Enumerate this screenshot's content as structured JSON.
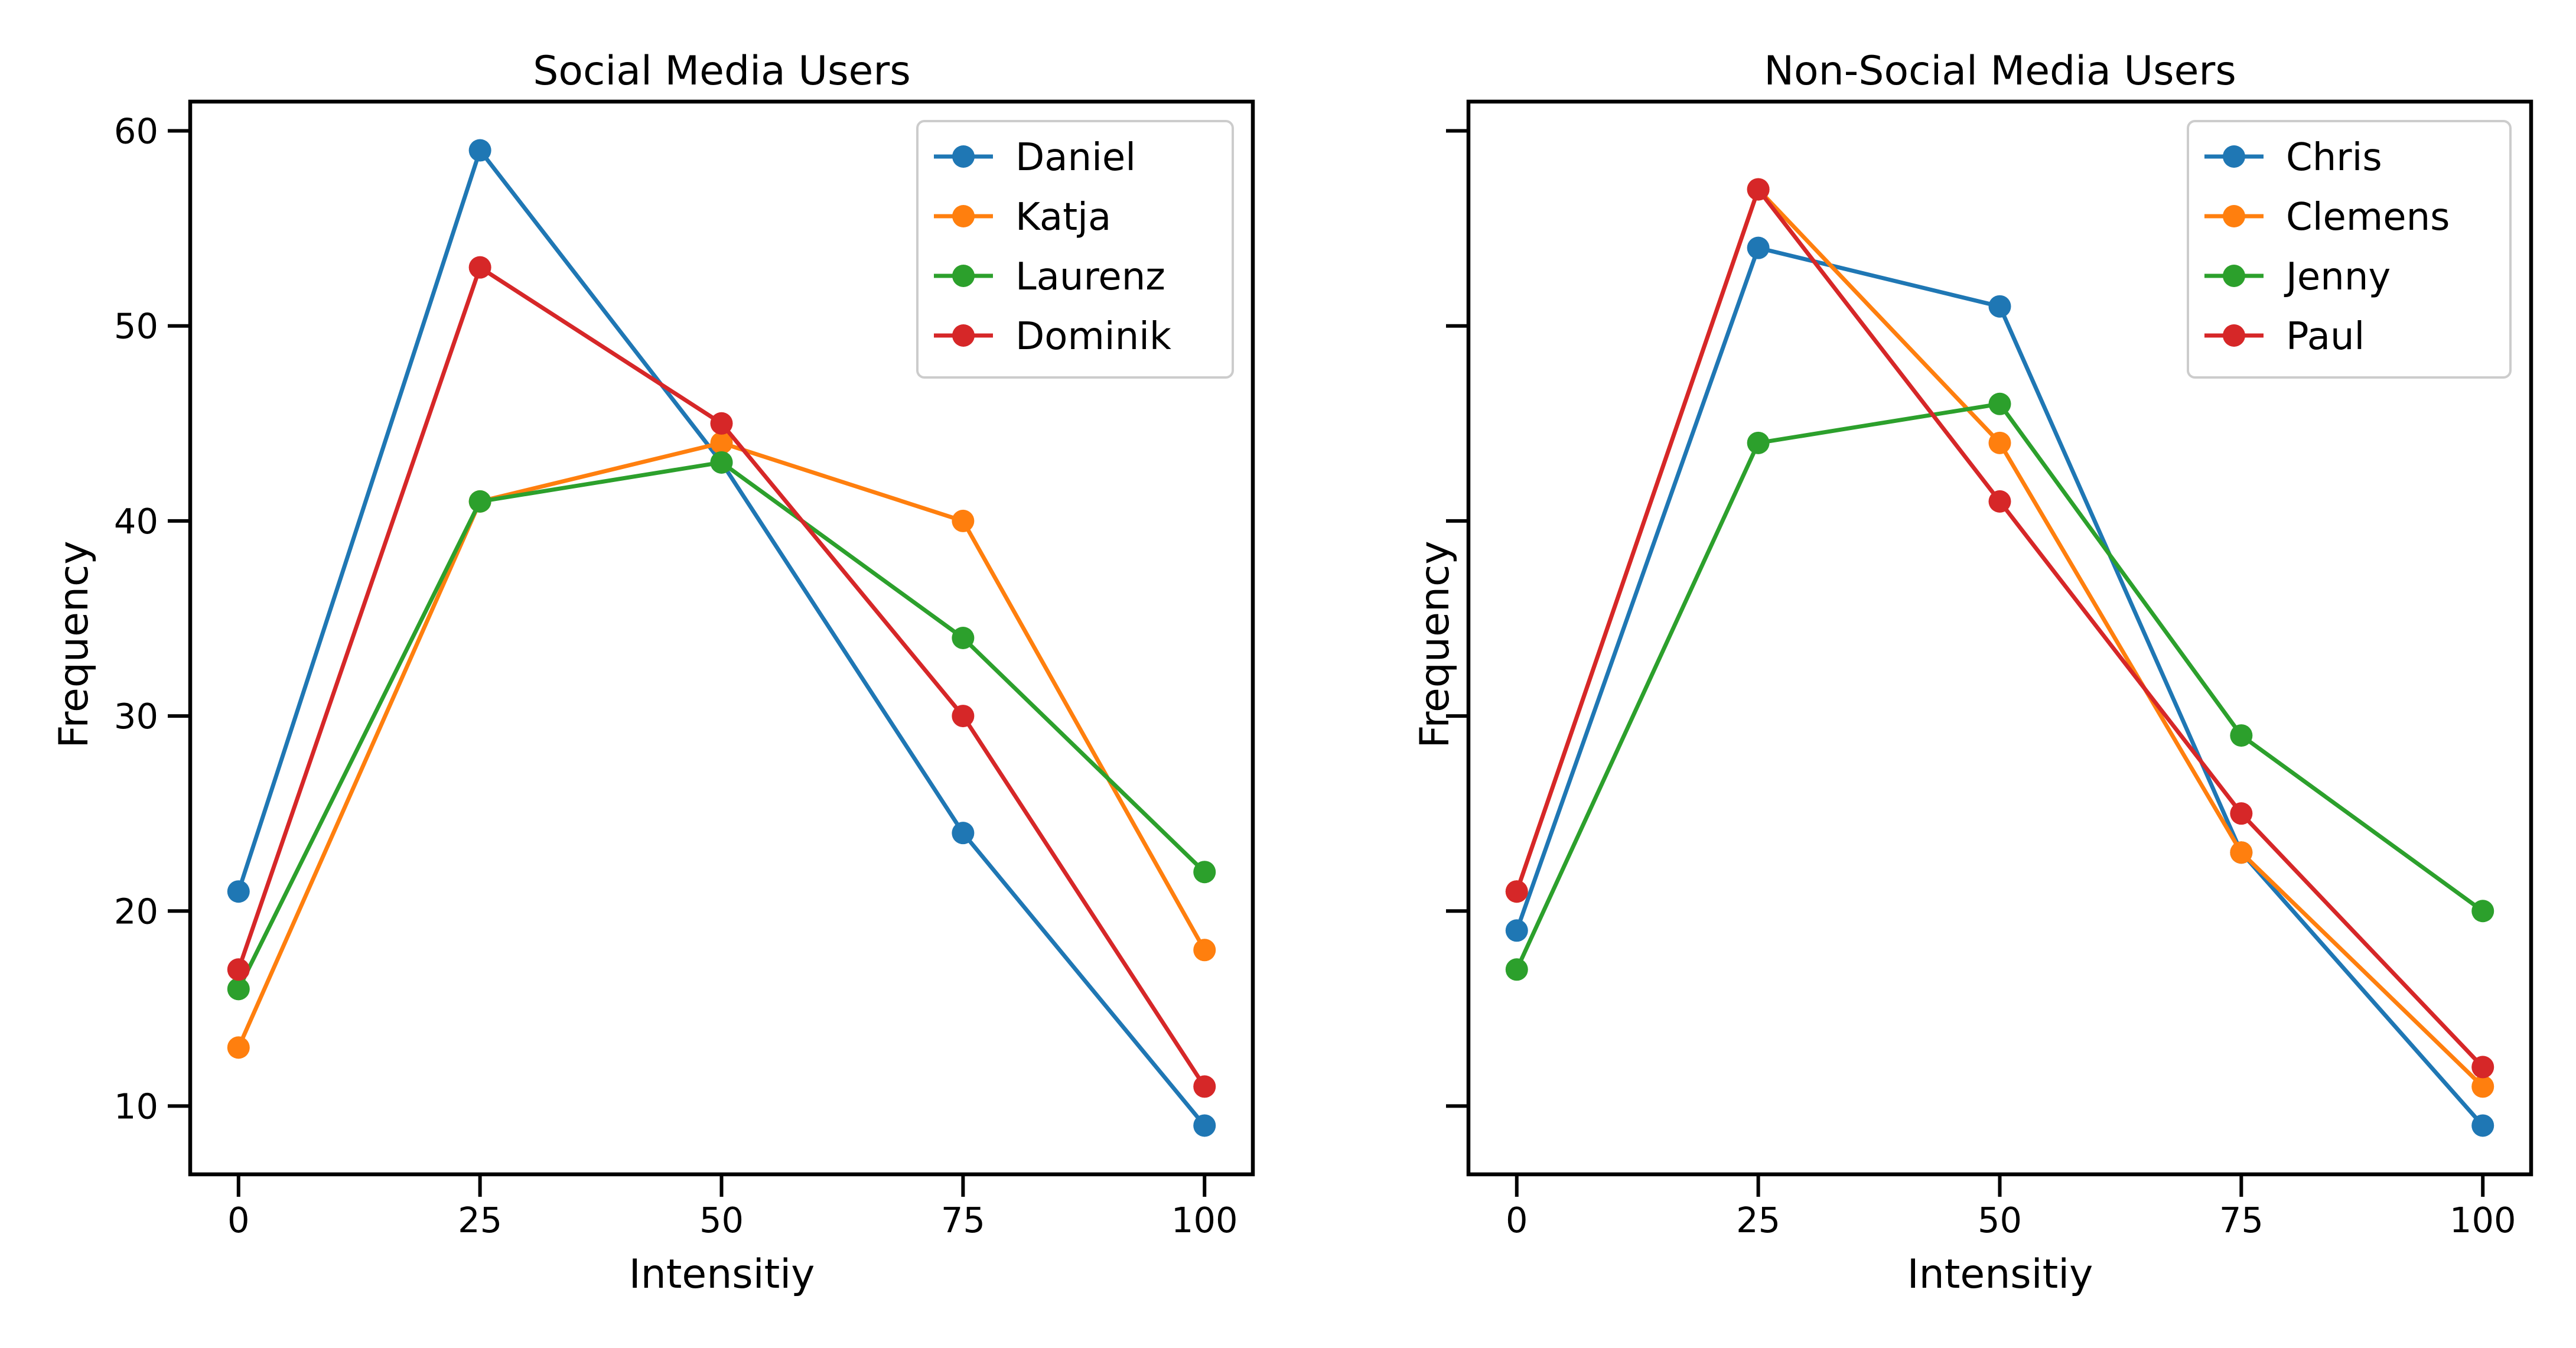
{
  "chart_data": [
    {
      "type": "line",
      "title": "Social Media Users",
      "xlabel": "Intensitiy",
      "ylabel": "Frequency",
      "x": [
        0,
        25,
        50,
        75,
        100
      ],
      "xticks": [
        0,
        25,
        50,
        75,
        100
      ],
      "yticks": [
        10,
        20,
        30,
        40,
        50,
        60
      ],
      "xlim": [
        -5,
        105
      ],
      "ylim": [
        6.5,
        61.5
      ],
      "grid": false,
      "legend_position": "top-right",
      "series": [
        {
          "name": "Daniel",
          "color": "#1f77b4",
          "values": [
            21,
            59,
            43,
            24,
            9
          ]
        },
        {
          "name": "Katja",
          "color": "#ff7f0e",
          "values": [
            13,
            41,
            44,
            40,
            18
          ]
        },
        {
          "name": "Laurenz",
          "color": "#2ca02c",
          "values": [
            16,
            41,
            43,
            34,
            22
          ]
        },
        {
          "name": "Dominik",
          "color": "#d62728",
          "values": [
            17,
            53,
            45,
            30,
            11
          ]
        }
      ]
    },
    {
      "type": "line",
      "title": "Non-Social Media Users",
      "xlabel": "Intensitiy",
      "ylabel": "Frequency",
      "x": [
        0,
        25,
        50,
        75,
        100
      ],
      "xticks": [
        0,
        25,
        50,
        75,
        100
      ],
      "yticks": [
        10,
        20,
        30,
        40,
        50,
        60
      ],
      "ytick_labels_shown": false,
      "xlim": [
        -5,
        105
      ],
      "ylim": [
        6.5,
        61.5
      ],
      "grid": false,
      "legend_position": "top-right",
      "series": [
        {
          "name": "Chris",
          "color": "#1f77b4",
          "values": [
            19,
            54,
            51,
            23,
            9
          ]
        },
        {
          "name": "Clemens",
          "color": "#ff7f0e",
          "values": [
            21,
            57,
            44,
            23,
            11
          ]
        },
        {
          "name": "Jenny",
          "color": "#2ca02c",
          "values": [
            17,
            44,
            46,
            29,
            20
          ]
        },
        {
          "name": "Paul",
          "color": "#d62728",
          "values": [
            21,
            57,
            41,
            25,
            12
          ]
        }
      ]
    }
  ]
}
